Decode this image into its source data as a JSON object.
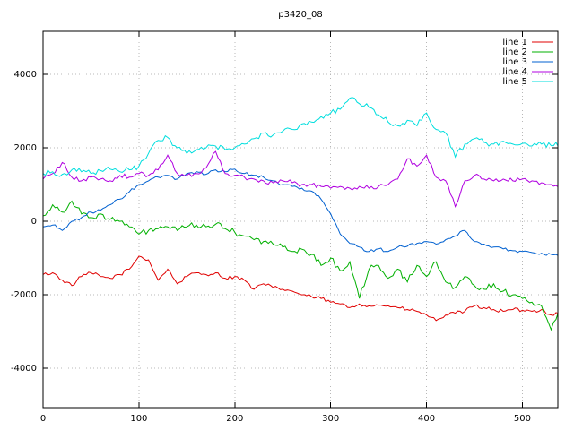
{
  "title": "p3420_08",
  "chart_data": {
    "type": "line",
    "title": "p3420_08",
    "xlabel": "",
    "ylabel": "",
    "xlim": [
      0,
      537
    ],
    "ylim": [
      -5070,
      5170
    ],
    "x_ticks": [
      0,
      100,
      200,
      300,
      400,
      500
    ],
    "y_ticks": [
      -4000,
      -2000,
      0,
      2000,
      4000
    ],
    "grid": true,
    "legend_position": "top-right-inside",
    "x_start": 0,
    "x_step": 10,
    "series": [
      {
        "name": "line 1",
        "color": "#e00000",
        "noise": 70,
        "values": [
          -1450,
          -1400,
          -1600,
          -1750,
          -1500,
          -1400,
          -1500,
          -1550,
          -1450,
          -1300,
          -950,
          -1050,
          -1600,
          -1300,
          -1700,
          -1500,
          -1400,
          -1450,
          -1400,
          -1550,
          -1500,
          -1600,
          -1850,
          -1700,
          -1800,
          -1850,
          -1900,
          -2000,
          -2050,
          -2100,
          -2200,
          -2250,
          -2350,
          -2250,
          -2300,
          -2280,
          -2300,
          -2350,
          -2400,
          -2450,
          -2550,
          -2700,
          -2550,
          -2500,
          -2450,
          -2300,
          -2350,
          -2400,
          -2450,
          -2400,
          -2420,
          -2450,
          -2400,
          -2550,
          -2480
        ]
      },
      {
        "name": "line 2",
        "color": "#00b000",
        "noise": 120,
        "values": [
          150,
          450,
          250,
          550,
          200,
          100,
          200,
          50,
          0,
          -150,
          -350,
          -250,
          -200,
          -150,
          -250,
          -150,
          -100,
          -150,
          -80,
          -200,
          -300,
          -400,
          -500,
          -550,
          -620,
          -700,
          -820,
          -760,
          -900,
          -1200,
          -1000,
          -1350,
          -1100,
          -2100,
          -1300,
          -1200,
          -1550,
          -1300,
          -1650,
          -1200,
          -1500,
          -1100,
          -1650,
          -1800,
          -1500,
          -1750,
          -1850,
          -1700,
          -1900,
          -2000,
          -2100,
          -2200,
          -2300,
          -2950,
          -2400
        ]
      },
      {
        "name": "line 3",
        "color": "#0060d0",
        "noise": 60,
        "values": [
          -150,
          -100,
          -250,
          0,
          100,
          250,
          300,
          450,
          600,
          800,
          1000,
          1100,
          1200,
          1250,
          1150,
          1300,
          1350,
          1280,
          1400,
          1350,
          1420,
          1300,
          1250,
          1200,
          1100,
          1000,
          950,
          900,
          820,
          600,
          200,
          -350,
          -600,
          -700,
          -820,
          -750,
          -820,
          -700,
          -680,
          -600,
          -550,
          -620,
          -500,
          -400,
          -250,
          -550,
          -620,
          -700,
          -750,
          -800,
          -820,
          -850,
          -870,
          -900,
          -950
        ]
      },
      {
        "name": "line 4",
        "color": "#b000e0",
        "noise": 90,
        "values": [
          1150,
          1300,
          1600,
          1200,
          1100,
          1200,
          1150,
          1100,
          1250,
          1200,
          1300,
          1250,
          1400,
          1800,
          1300,
          1250,
          1300,
          1450,
          1900,
          1300,
          1250,
          1200,
          1150,
          1100,
          1050,
          1100,
          1050,
          1000,
          1000,
          950,
          900,
          950,
          900,
          950,
          900,
          950,
          1000,
          1150,
          1700,
          1500,
          1800,
          1200,
          1100,
          400,
          1100,
          1250,
          1150,
          1100,
          1150,
          1100,
          1150,
          1100,
          1050,
          1000,
          900
        ]
      },
      {
        "name": "line 5",
        "color": "#00dede",
        "noise": 110,
        "values": [
          1300,
          1350,
          1280,
          1400,
          1350,
          1300,
          1380,
          1420,
          1350,
          1400,
          1500,
          1850,
          2200,
          2280,
          2000,
          1850,
          1950,
          2000,
          2050,
          1950,
          2000,
          2100,
          2250,
          2400,
          2350,
          2450,
          2500,
          2650,
          2700,
          2850,
          2950,
          3050,
          3350,
          3200,
          3100,
          2900,
          2700,
          2600,
          2750,
          2600,
          2950,
          2500,
          2400,
          1750,
          2100,
          2250,
          2150,
          2100,
          2180,
          2100,
          2120,
          2050,
          2100,
          2060,
          2100
        ]
      }
    ]
  }
}
